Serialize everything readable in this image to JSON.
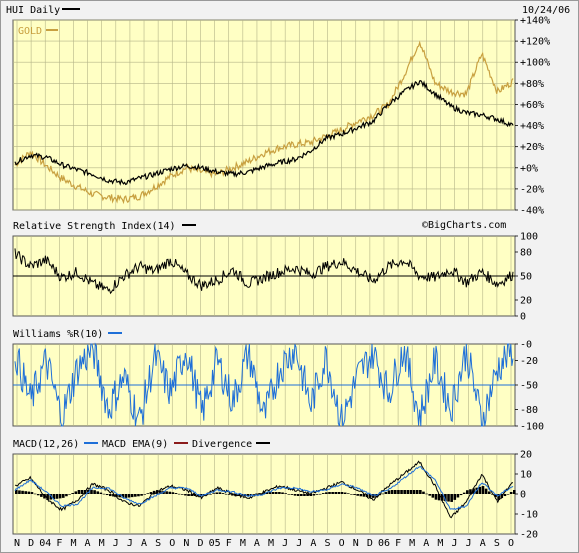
{
  "chart_data": [
    {
      "type": "line",
      "title": "HUI Daily",
      "date": "10/24/06",
      "watermark": "©BigCharts.com",
      "yunit": "%",
      "yticks": [
        "+140%",
        "+120%",
        "+100%",
        "+80%",
        "+60%",
        "+40%",
        "+20%",
        "+0%",
        "-20%",
        "-40%"
      ],
      "ylim": [
        -40,
        140
      ],
      "series": [
        {
          "name": "HUI",
          "color": "#000000",
          "values": [
            5,
            12,
            10,
            3,
            -2,
            -6,
            -12,
            -14,
            -10,
            -6,
            -1,
            2,
            0,
            -4,
            -6,
            -4,
            1,
            5,
            8,
            16,
            28,
            32,
            38,
            44,
            60,
            72,
            82,
            70,
            58,
            52,
            50,
            46,
            40
          ]
        },
        {
          "name": "GOLD",
          "color": "#c8a040",
          "values": [
            3,
            15,
            2,
            -10,
            -18,
            -25,
            -28,
            -30,
            -27,
            -18,
            -8,
            0,
            -4,
            -6,
            0,
            6,
            14,
            19,
            22,
            24,
            30,
            36,
            44,
            50,
            60,
            88,
            120,
            80,
            72,
            70,
            108,
            72,
            82
          ]
        }
      ]
    },
    {
      "type": "line",
      "title": "Relative Strength Index(14)",
      "yticks": [
        "100",
        "80",
        "50",
        "20",
        "0"
      ],
      "ylim": [
        0,
        100
      ],
      "reference_line": 50,
      "series": [
        {
          "name": "RSI",
          "color": "#000000",
          "values": [
            78,
            62,
            70,
            48,
            55,
            40,
            32,
            50,
            62,
            56,
            70,
            52,
            38,
            45,
            58,
            40,
            48,
            55,
            60,
            52,
            62,
            68,
            56,
            44,
            62,
            70,
            50,
            48,
            58,
            42,
            55,
            40,
            52
          ]
        }
      ]
    },
    {
      "type": "line",
      "title": "Williams %R(10)",
      "yticks": [
        "-0",
        "-20",
        "-50",
        "-80",
        "-100"
      ],
      "ylim": [
        -100,
        0
      ],
      "reference_line": -50,
      "series": [
        {
          "name": "Williams %R",
          "color": "#1e6fd8",
          "values": [
            -10,
            -70,
            -20,
            -90,
            -30,
            -5,
            -80,
            -40,
            -95,
            -15,
            -60,
            -5,
            -85,
            -20,
            -70,
            -10,
            -90,
            -30,
            -5,
            -75,
            -15,
            -95,
            -40,
            -10,
            -60,
            -5,
            -90,
            -20,
            -80,
            -8,
            -95,
            -30,
            -5
          ]
        }
      ]
    },
    {
      "type": "bar",
      "title": "MACD(12,26)",
      "legend": [
        "MACD EMA(9)",
        "Divergence"
      ],
      "yticks": [
        "20",
        "10",
        "0",
        "-10",
        "-20"
      ],
      "ylim": [
        -20,
        20
      ],
      "x_tick_labels": [
        "N",
        "D",
        "04",
        "F",
        "M",
        "A",
        "M",
        "J",
        "J",
        "A",
        "S",
        "O",
        "N",
        "D",
        "05",
        "F",
        "M",
        "A",
        "M",
        "J",
        "J",
        "A",
        "S",
        "O",
        "N",
        "D",
        "06",
        "F",
        "M",
        "A",
        "M",
        "J",
        "J",
        "A",
        "S",
        "O"
      ],
      "series": [
        {
          "name": "MACD",
          "color": "#000000",
          "values": [
            4,
            8,
            -2,
            -8,
            -3,
            5,
            2,
            -4,
            -6,
            1,
            4,
            2,
            -2,
            3,
            0,
            -2,
            1,
            4,
            2,
            0,
            3,
            6,
            2,
            -3,
            4,
            10,
            16,
            4,
            -12,
            -4,
            10,
            -4,
            6
          ]
        },
        {
          "name": "MACD EMA(9)",
          "color": "#1e6fd8",
          "values": [
            2,
            7,
            1,
            -6,
            -5,
            3,
            3,
            -2,
            -5,
            -1,
            3,
            3,
            -1,
            2,
            1,
            -1,
            0,
            3,
            3,
            1,
            2,
            5,
            3,
            -1,
            2,
            8,
            14,
            7,
            -8,
            -6,
            6,
            -1,
            4
          ]
        },
        {
          "name": "Divergence",
          "color": "#8b1c1c",
          "values": [
            2,
            1,
            -3,
            -2,
            2,
            2,
            -1,
            -2,
            -1,
            2,
            1,
            -1,
            -1,
            1,
            -1,
            -1,
            1,
            1,
            -1,
            -1,
            1,
            1,
            -1,
            -2,
            2,
            2,
            2,
            -3,
            -4,
            2,
            4,
            -3,
            2
          ]
        }
      ]
    }
  ]
}
